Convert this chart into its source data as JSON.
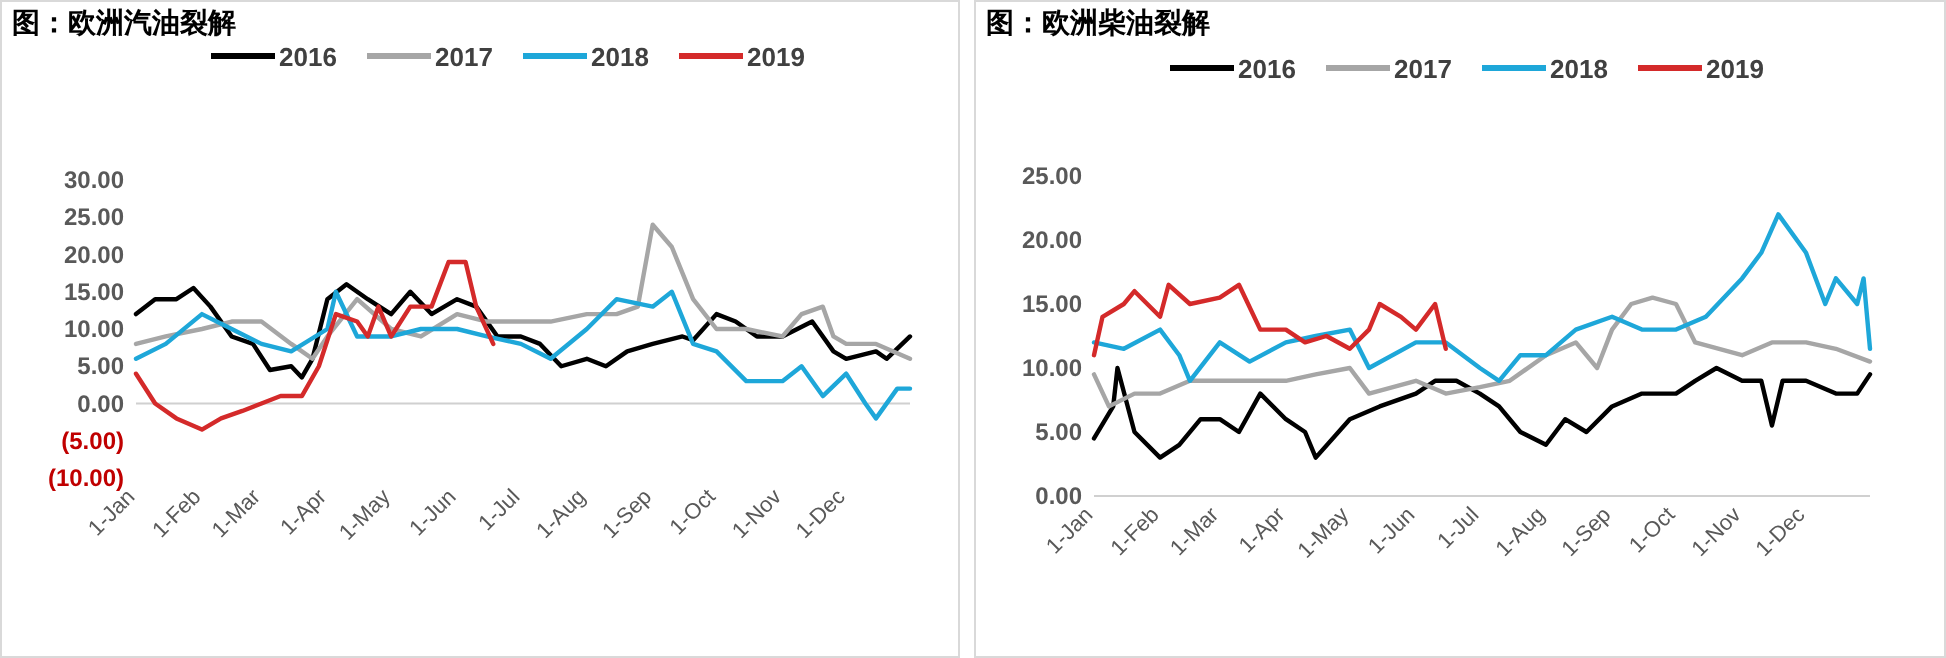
{
  "chart_data": [
    {
      "type": "line",
      "title": "图：欧洲汽油裂解",
      "legend": "top",
      "grid": false,
      "ref_lines": [
        {
          "axis": "y",
          "value": 0,
          "color": "#d0d0d0"
        }
      ],
      "xlim": [
        "--01-01",
        "--12-31"
      ],
      "xticks": [
        {
          "value": "--01-01",
          "label": "1-Jan"
        },
        {
          "value": "--02-01",
          "label": "1-Feb"
        },
        {
          "value": "--03-01",
          "label": "1-Mar"
        },
        {
          "value": "--04-01",
          "label": "1-Apr"
        },
        {
          "value": "--05-01",
          "label": "1-May"
        },
        {
          "value": "--06-01",
          "label": "1-Jun"
        },
        {
          "value": "--07-01",
          "label": "1-Jul"
        },
        {
          "value": "--08-01",
          "label": "1-Aug"
        },
        {
          "value": "--09-01",
          "label": "1-Sep"
        },
        {
          "value": "--10-01",
          "label": "1-Oct"
        },
        {
          "value": "--11-01",
          "label": "1-Nov"
        },
        {
          "value": "--12-01",
          "label": "1-Dec"
        }
      ],
      "ylim": [
        -10,
        30
      ],
      "yticks": [
        {
          "value": -10,
          "label": "(10.00)"
        },
        {
          "value": -5,
          "label": "(5.00)"
        },
        {
          "value": 0,
          "label": "0.00"
        },
        {
          "value": 5,
          "label": "5.00"
        },
        {
          "value": 10,
          "label": "10.00"
        },
        {
          "value": 15,
          "label": "15.00"
        },
        {
          "value": 20,
          "label": "20.00"
        },
        {
          "value": 25,
          "label": "25.00"
        },
        {
          "value": 30,
          "label": "30.00"
        }
      ],
      "series": [
        {
          "name": "2016",
          "color": "#000000",
          "x": [
            "--01-01",
            "--01-10",
            "--01-20",
            "--01-28",
            "--02-05",
            "--02-15",
            "--02-25",
            "--03-05",
            "--03-15",
            "--03-20",
            "--03-25",
            "--04-01",
            "--04-10",
            "--04-20",
            "--05-01",
            "--05-10",
            "--05-20",
            "--06-01",
            "--06-10",
            "--06-20",
            "--07-01",
            "--07-10",
            "--07-20",
            "--08-01",
            "--08-10",
            "--08-20",
            "--09-01",
            "--09-15",
            "--09-20",
            "--10-01",
            "--10-10",
            "--10-20",
            "--11-01",
            "--11-15",
            "--11-25",
            "--12-01",
            "--12-15",
            "--12-20",
            "--12-31"
          ],
          "values": [
            12,
            14,
            14,
            15.5,
            13,
            9,
            8,
            4.5,
            5,
            3.5,
            6,
            14,
            16,
            14,
            12,
            15,
            12,
            14,
            13,
            9,
            9,
            8,
            5,
            6,
            5,
            7,
            8,
            9,
            8.5,
            12,
            11,
            9,
            9,
            11,
            7,
            6,
            7,
            6,
            9
          ]
        },
        {
          "name": "2017",
          "color": "#a6a6a6",
          "x": [
            "--01-01",
            "--01-15",
            "--02-01",
            "--02-15",
            "--03-01",
            "--03-15",
            "--03-25",
            "--04-01",
            "--04-15",
            "--05-01",
            "--05-15",
            "--06-01",
            "--06-15",
            "--07-01",
            "--07-15",
            "--08-01",
            "--08-15",
            "--08-25",
            "--09-01",
            "--09-10",
            "--09-20",
            "--10-01",
            "--10-15",
            "--11-01",
            "--11-10",
            "--11-20",
            "--11-25",
            "--12-01",
            "--12-15",
            "--12-31"
          ],
          "values": [
            8,
            9,
            10,
            11,
            11,
            8,
            6,
            9,
            14,
            10,
            9,
            12,
            11,
            11,
            11,
            12,
            12,
            13,
            24,
            21,
            14,
            10,
            10,
            9,
            12,
            13,
            9,
            8,
            8,
            6
          ]
        },
        {
          "name": "2018",
          "color": "#1ea7d9",
          "x": [
            "--01-01",
            "--01-15",
            "--02-01",
            "--02-15",
            "--03-01",
            "--03-15",
            "--04-01",
            "--04-05",
            "--04-15",
            "--05-01",
            "--05-15",
            "--06-01",
            "--06-15",
            "--07-01",
            "--07-15",
            "--08-01",
            "--08-15",
            "--09-01",
            "--09-10",
            "--09-20",
            "--10-01",
            "--10-15",
            "--11-01",
            "--11-10",
            "--11-20",
            "--12-01",
            "--12-10",
            "--12-15",
            "--12-25",
            "--12-31"
          ],
          "values": [
            6,
            8,
            12,
            10,
            8,
            7,
            10,
            15,
            9,
            9,
            10,
            10,
            9,
            8,
            6,
            10,
            14,
            13,
            15,
            8,
            7,
            3,
            3,
            5,
            1,
            4,
            0,
            -2,
            2,
            2
          ]
        },
        {
          "name": "2019",
          "color": "#d42a2a",
          "x": [
            "--01-01",
            "--01-10",
            "--01-20",
            "--02-01",
            "--02-10",
            "--02-20",
            "--03-01",
            "--03-10",
            "--03-20",
            "--03-28",
            "--04-05",
            "--04-15",
            "--04-20",
            "--04-25",
            "--05-01",
            "--05-10",
            "--05-20",
            "--05-28",
            "--06-05",
            "--06-10",
            "--06-18"
          ],
          "values": [
            4,
            0,
            -2,
            -3.5,
            -2,
            -1,
            0,
            1,
            1,
            5,
            12,
            11,
            9,
            13,
            9,
            13,
            13,
            19,
            19,
            13,
            8
          ]
        }
      ]
    },
    {
      "type": "line",
      "title": "图：欧洲柴油裂解",
      "legend": "top",
      "grid": false,
      "xlim": [
        "--01-01",
        "--12-31"
      ],
      "xticks": [
        {
          "value": "--01-01",
          "label": "1-Jan"
        },
        {
          "value": "--02-01",
          "label": "1-Feb"
        },
        {
          "value": "--03-01",
          "label": "1-Mar"
        },
        {
          "value": "--04-01",
          "label": "1-Apr"
        },
        {
          "value": "--05-01",
          "label": "1-May"
        },
        {
          "value": "--06-01",
          "label": "1-Jun"
        },
        {
          "value": "--07-01",
          "label": "1-Jul"
        },
        {
          "value": "--08-01",
          "label": "1-Aug"
        },
        {
          "value": "--09-01",
          "label": "1-Sep"
        },
        {
          "value": "--10-01",
          "label": "1-Oct"
        },
        {
          "value": "--11-01",
          "label": "1-Nov"
        },
        {
          "value": "--12-01",
          "label": "1-Dec"
        }
      ],
      "ylim": [
        0,
        25
      ],
      "yticks": [
        {
          "value": 0,
          "label": "0.00"
        },
        {
          "value": 5,
          "label": "5.00"
        },
        {
          "value": 10,
          "label": "10.00"
        },
        {
          "value": 15,
          "label": "15.00"
        },
        {
          "value": 20,
          "label": "20.00"
        },
        {
          "value": 25,
          "label": "25.00"
        }
      ],
      "series": [
        {
          "name": "2016",
          "color": "#000000",
          "x": [
            "--01-01",
            "--01-10",
            "--01-12",
            "--01-20",
            "--02-01",
            "--02-10",
            "--02-20",
            "--03-01",
            "--03-10",
            "--03-20",
            "--04-01",
            "--04-10",
            "--04-15",
            "--05-01",
            "--05-15",
            "--06-01",
            "--06-10",
            "--06-20",
            "--07-01",
            "--07-10",
            "--07-20",
            "--08-01",
            "--08-10",
            "--08-20",
            "--09-01",
            "--09-15",
            "--10-01",
            "--10-10",
            "--10-20",
            "--11-01",
            "--11-10",
            "--11-15",
            "--11-20",
            "--12-01",
            "--12-15",
            "--12-25",
            "--12-31"
          ],
          "values": [
            4.5,
            7,
            10,
            5,
            3,
            4,
            6,
            6,
            5,
            8,
            6,
            5,
            3,
            6,
            7,
            8,
            9,
            9,
            8,
            7,
            5,
            4,
            6,
            5,
            7,
            8,
            8,
            9,
            10,
            9,
            9,
            5.5,
            9,
            9,
            8,
            8,
            9.5
          ]
        },
        {
          "name": "2017",
          "color": "#a6a6a6",
          "x": [
            "--01-01",
            "--01-08",
            "--01-20",
            "--02-01",
            "--02-15",
            "--03-01",
            "--03-15",
            "--04-01",
            "--04-15",
            "--05-01",
            "--05-10",
            "--06-01",
            "--06-15",
            "--07-01",
            "--07-15",
            "--08-01",
            "--08-15",
            "--08-25",
            "--09-01",
            "--09-10",
            "--09-20",
            "--10-01",
            "--10-10",
            "--11-01",
            "--11-15",
            "--12-01",
            "--12-15",
            "--12-31"
          ],
          "values": [
            9.5,
            7,
            8,
            8,
            9,
            9,
            9,
            9,
            9.5,
            10,
            8,
            9,
            8,
            8.5,
            9,
            11,
            12,
            10,
            13,
            15,
            15.5,
            15,
            12,
            11,
            12,
            12,
            11.5,
            10.5
          ]
        },
        {
          "name": "2018",
          "color": "#1ea7d9",
          "x": [
            "--01-01",
            "--01-15",
            "--02-01",
            "--02-10",
            "--02-15",
            "--03-01",
            "--03-15",
            "--04-01",
            "--04-15",
            "--05-01",
            "--05-10",
            "--06-01",
            "--06-15",
            "--07-01",
            "--07-10",
            "--07-20",
            "--08-01",
            "--08-15",
            "--09-01",
            "--09-15",
            "--10-01",
            "--10-15",
            "--11-01",
            "--11-10",
            "--11-18",
            "--12-01",
            "--12-10",
            "--12-15",
            "--12-25",
            "--12-28",
            "--12-31"
          ],
          "values": [
            12,
            11.5,
            13,
            11,
            9,
            12,
            10.5,
            12,
            12.5,
            13,
            10,
            12,
            12,
            10,
            9,
            11,
            11,
            13,
            14,
            13,
            13,
            14,
            17,
            19,
            22,
            19,
            15,
            17,
            15,
            17,
            11.5
          ]
        },
        {
          "name": "2019",
          "color": "#d42a2a",
          "x": [
            "--01-01",
            "--01-05",
            "--01-15",
            "--01-20",
            "--02-01",
            "--02-05",
            "--02-15",
            "--03-01",
            "--03-10",
            "--03-20",
            "--04-01",
            "--04-10",
            "--04-20",
            "--05-01",
            "--05-10",
            "--05-15",
            "--05-25",
            "--06-01",
            "--06-10",
            "--06-15"
          ],
          "values": [
            11,
            14,
            15,
            16,
            14,
            16.5,
            15,
            15.5,
            16.5,
            13,
            13,
            12,
            12.5,
            11.5,
            13,
            15,
            14,
            13,
            15,
            11.5
          ]
        }
      ]
    }
  ]
}
